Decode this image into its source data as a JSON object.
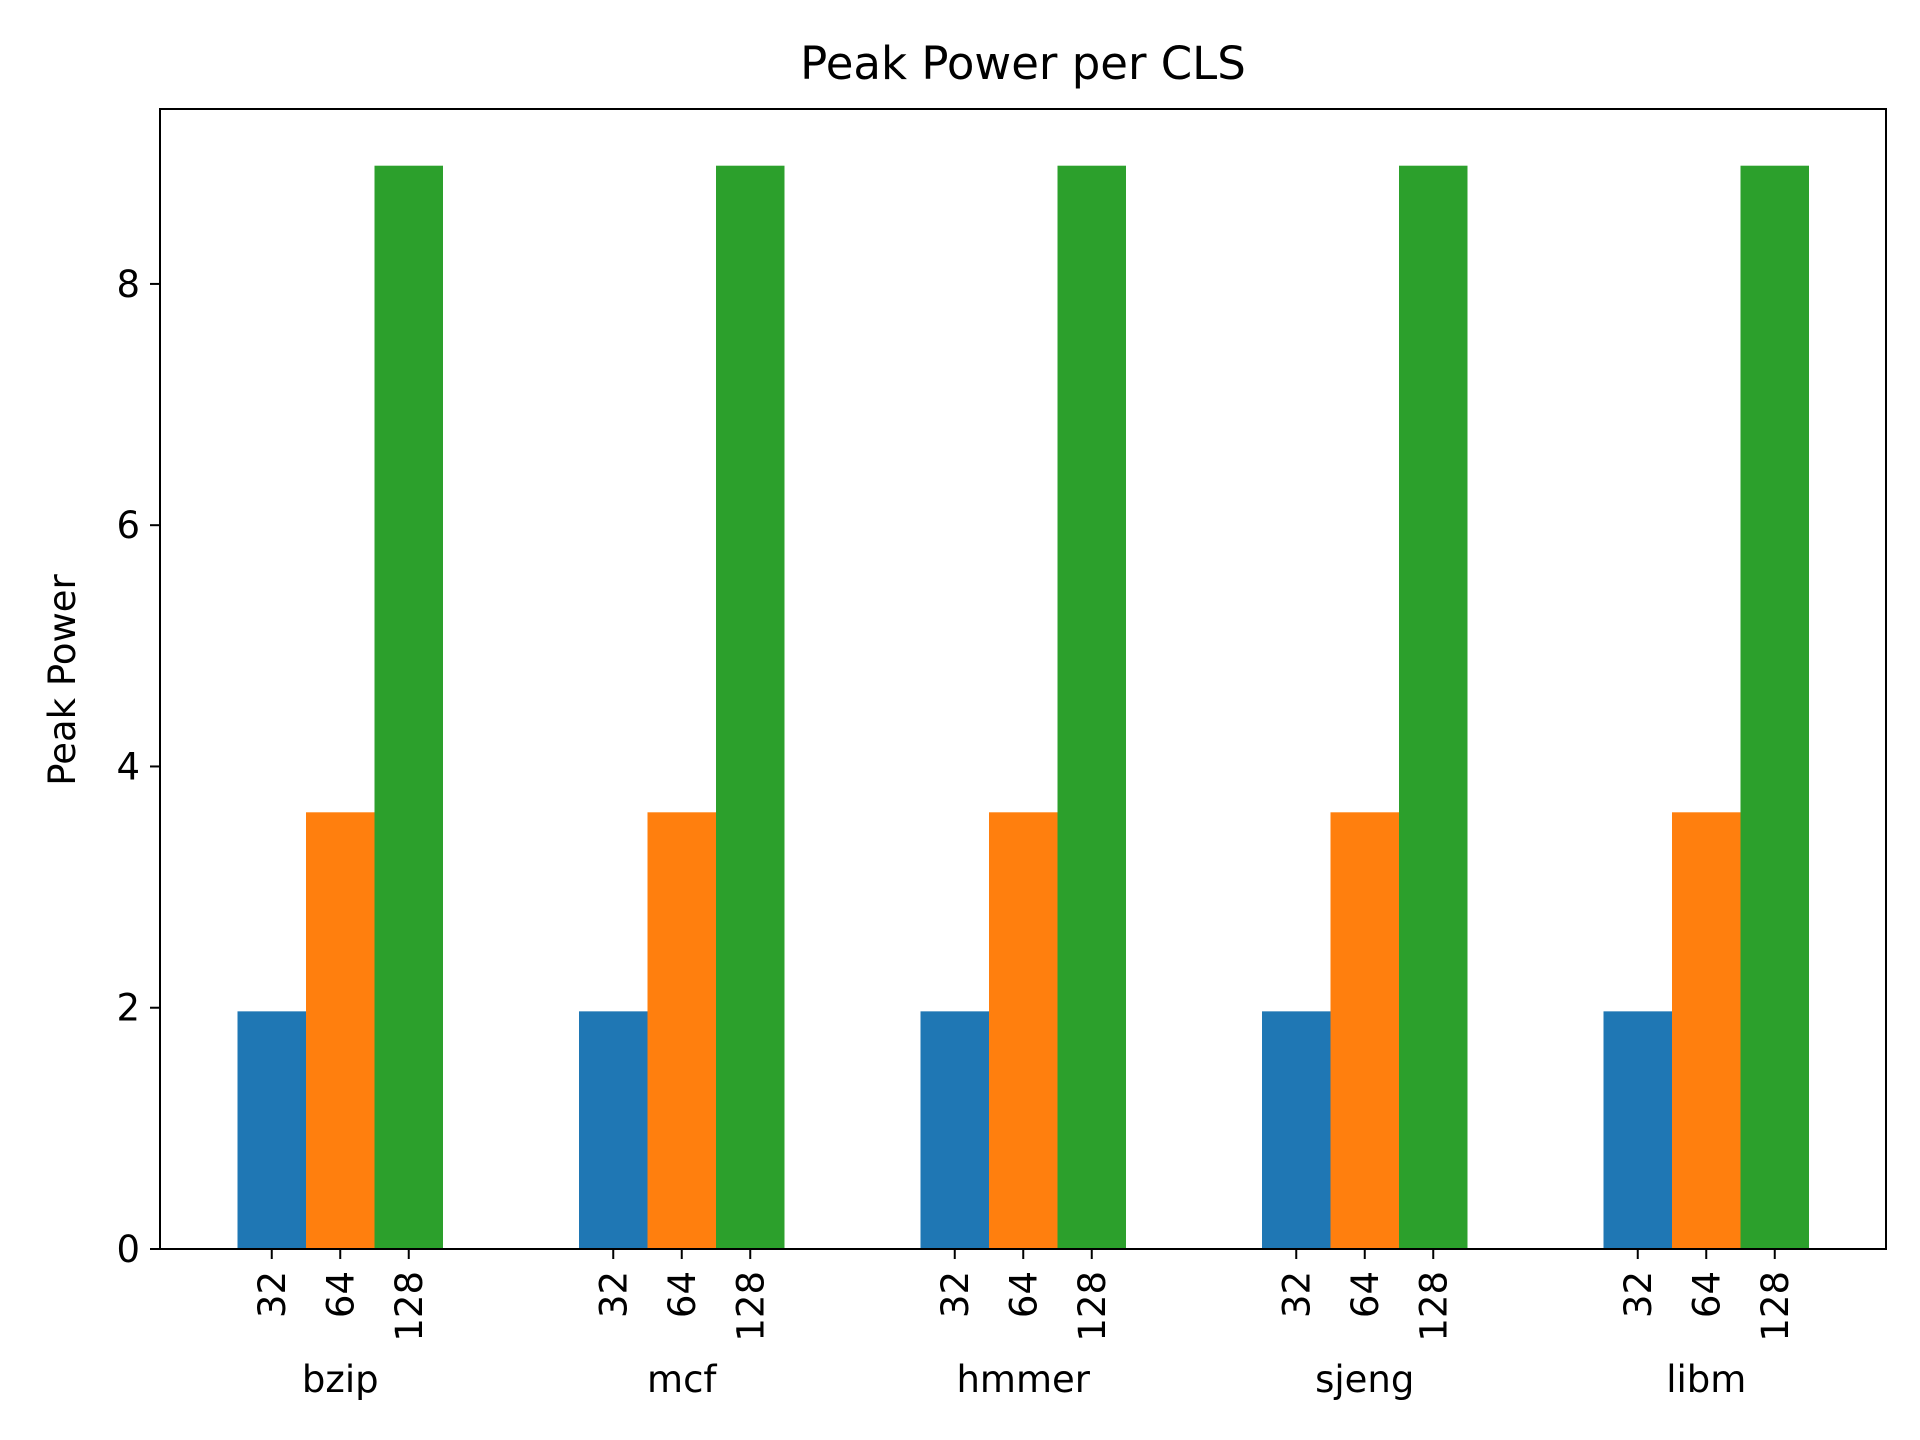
{
  "chart_data": {
    "type": "bar",
    "title": "Peak Power per CLS",
    "xlabel": "",
    "ylabel": "Peak Power",
    "ylim": [
      0,
      9.45
    ],
    "yticks": [
      0,
      2,
      4,
      6,
      8
    ],
    "grid": false,
    "legend": "none",
    "groups": [
      "bzip",
      "mcf",
      "hmmer",
      "sjeng",
      "libm"
    ],
    "subcategories": [
      "32",
      "64",
      "128"
    ],
    "colors": [
      "#1f77b4",
      "#ff7f0e",
      "#2ca02c"
    ],
    "values": [
      [
        1.97,
        3.62,
        8.98
      ],
      [
        1.97,
        3.62,
        8.98
      ],
      [
        1.97,
        3.62,
        8.98
      ],
      [
        1.97,
        3.62,
        8.98
      ],
      [
        1.97,
        3.62,
        8.98
      ]
    ]
  }
}
